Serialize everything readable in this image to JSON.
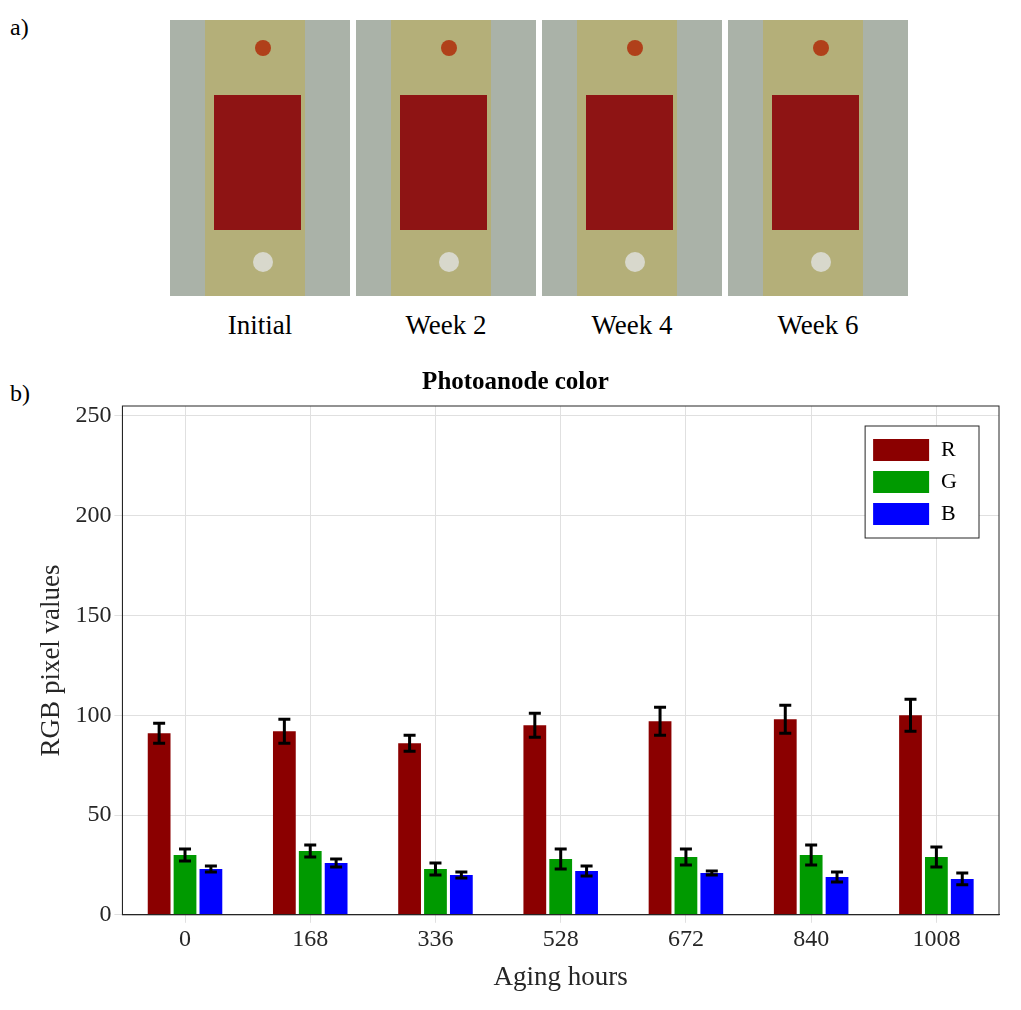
{
  "panels": {
    "a": {
      "letter": "a)",
      "captions": [
        "Initial",
        "Week 2",
        "Week 4",
        "Week 6"
      ]
    },
    "b": {
      "letter": "b)"
    }
  },
  "chart_data": {
    "type": "bar",
    "title": "Photoanode color",
    "x_label": "Aging hours",
    "y_label": "RGB pixel values",
    "categories": [
      "0",
      "168",
      "336",
      "528",
      "672",
      "840",
      "1008"
    ],
    "series": [
      {
        "name": "R",
        "color": "#8b0000",
        "values": [
          91,
          92,
          86,
          95,
          97,
          98,
          100
        ],
        "errors": [
          5,
          6,
          4,
          6,
          7,
          7,
          8
        ]
      },
      {
        "name": "G",
        "color": "#009a00",
        "values": [
          30,
          32,
          23,
          28,
          29,
          30,
          29
        ],
        "errors": [
          3,
          3,
          3,
          5,
          4,
          5,
          5
        ]
      },
      {
        "name": "B",
        "color": "#0000ff",
        "values": [
          23,
          26,
          20,
          22,
          21,
          19,
          18
        ],
        "errors": [
          1.5,
          2,
          1.5,
          2.5,
          1,
          2.5,
          3
        ]
      }
    ],
    "ylim": [
      0,
      255
    ],
    "yticks": [
      0,
      50,
      100,
      150,
      200,
      250
    ],
    "grid": true,
    "legend": "upper right"
  }
}
